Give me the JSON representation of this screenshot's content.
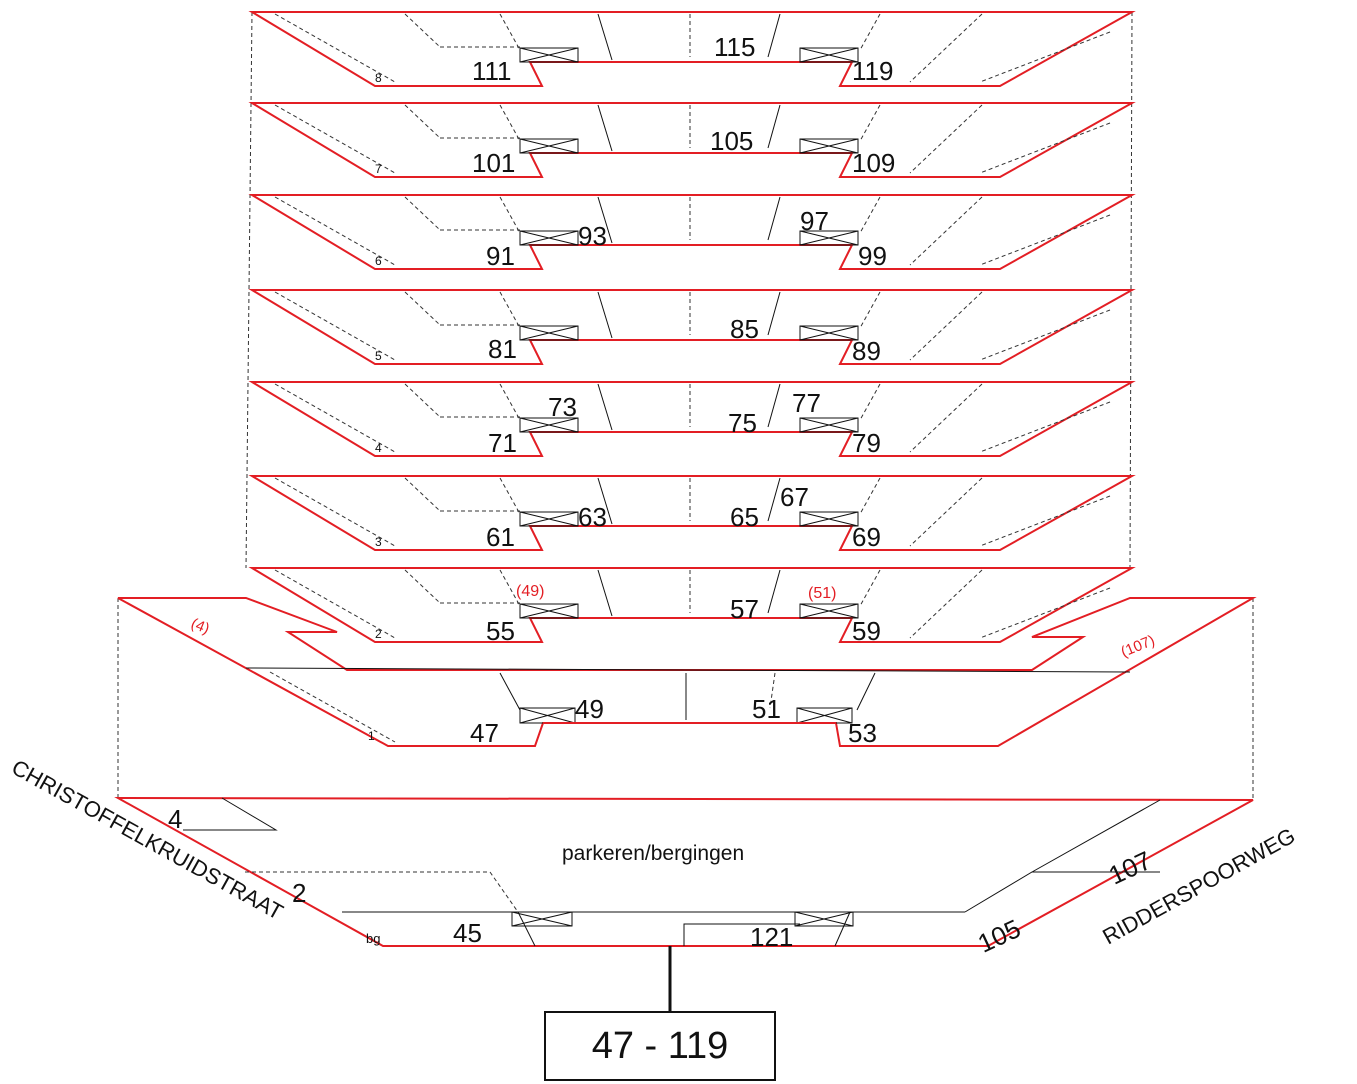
{
  "colors": {
    "floor_outline": "#e31e24",
    "line": "#111111",
    "dashed": "#333333",
    "red_label": "#e31e24",
    "background": "#ffffff"
  },
  "streets": {
    "left": "CHRISTOFFELKRUIDSTRAAT",
    "right": "RIDDERSPOORWEG"
  },
  "ground_floor": {
    "level_label": "bg",
    "area_label": "parkeren/bergingen",
    "numbers": [
      "4",
      "2",
      "45",
      "121",
      "105",
      "107"
    ]
  },
  "range_box": {
    "label": "47 - 119"
  },
  "floors": [
    {
      "level": "8",
      "numbers": [
        "111",
        "115",
        "119"
      ]
    },
    {
      "level": "7",
      "numbers": [
        "101",
        "105",
        "109"
      ]
    },
    {
      "level": "6",
      "numbers": [
        "91",
        "93",
        "97",
        "99"
      ]
    },
    {
      "level": "5",
      "numbers": [
        "81",
        "85",
        "89"
      ]
    },
    {
      "level": "4",
      "numbers": [
        "71",
        "73",
        "75",
        "77",
        "79"
      ]
    },
    {
      "level": "3",
      "numbers": [
        "61",
        "63",
        "65",
        "67",
        "69"
      ]
    },
    {
      "level": "2",
      "numbers": [
        "55",
        "57",
        "59"
      ],
      "red_numbers": [
        "(49)",
        "(51)"
      ]
    },
    {
      "level": "1",
      "numbers": [
        "47",
        "49",
        "51",
        "53"
      ]
    }
  ],
  "wing_labels": [
    "(4)",
    "(107)"
  ]
}
